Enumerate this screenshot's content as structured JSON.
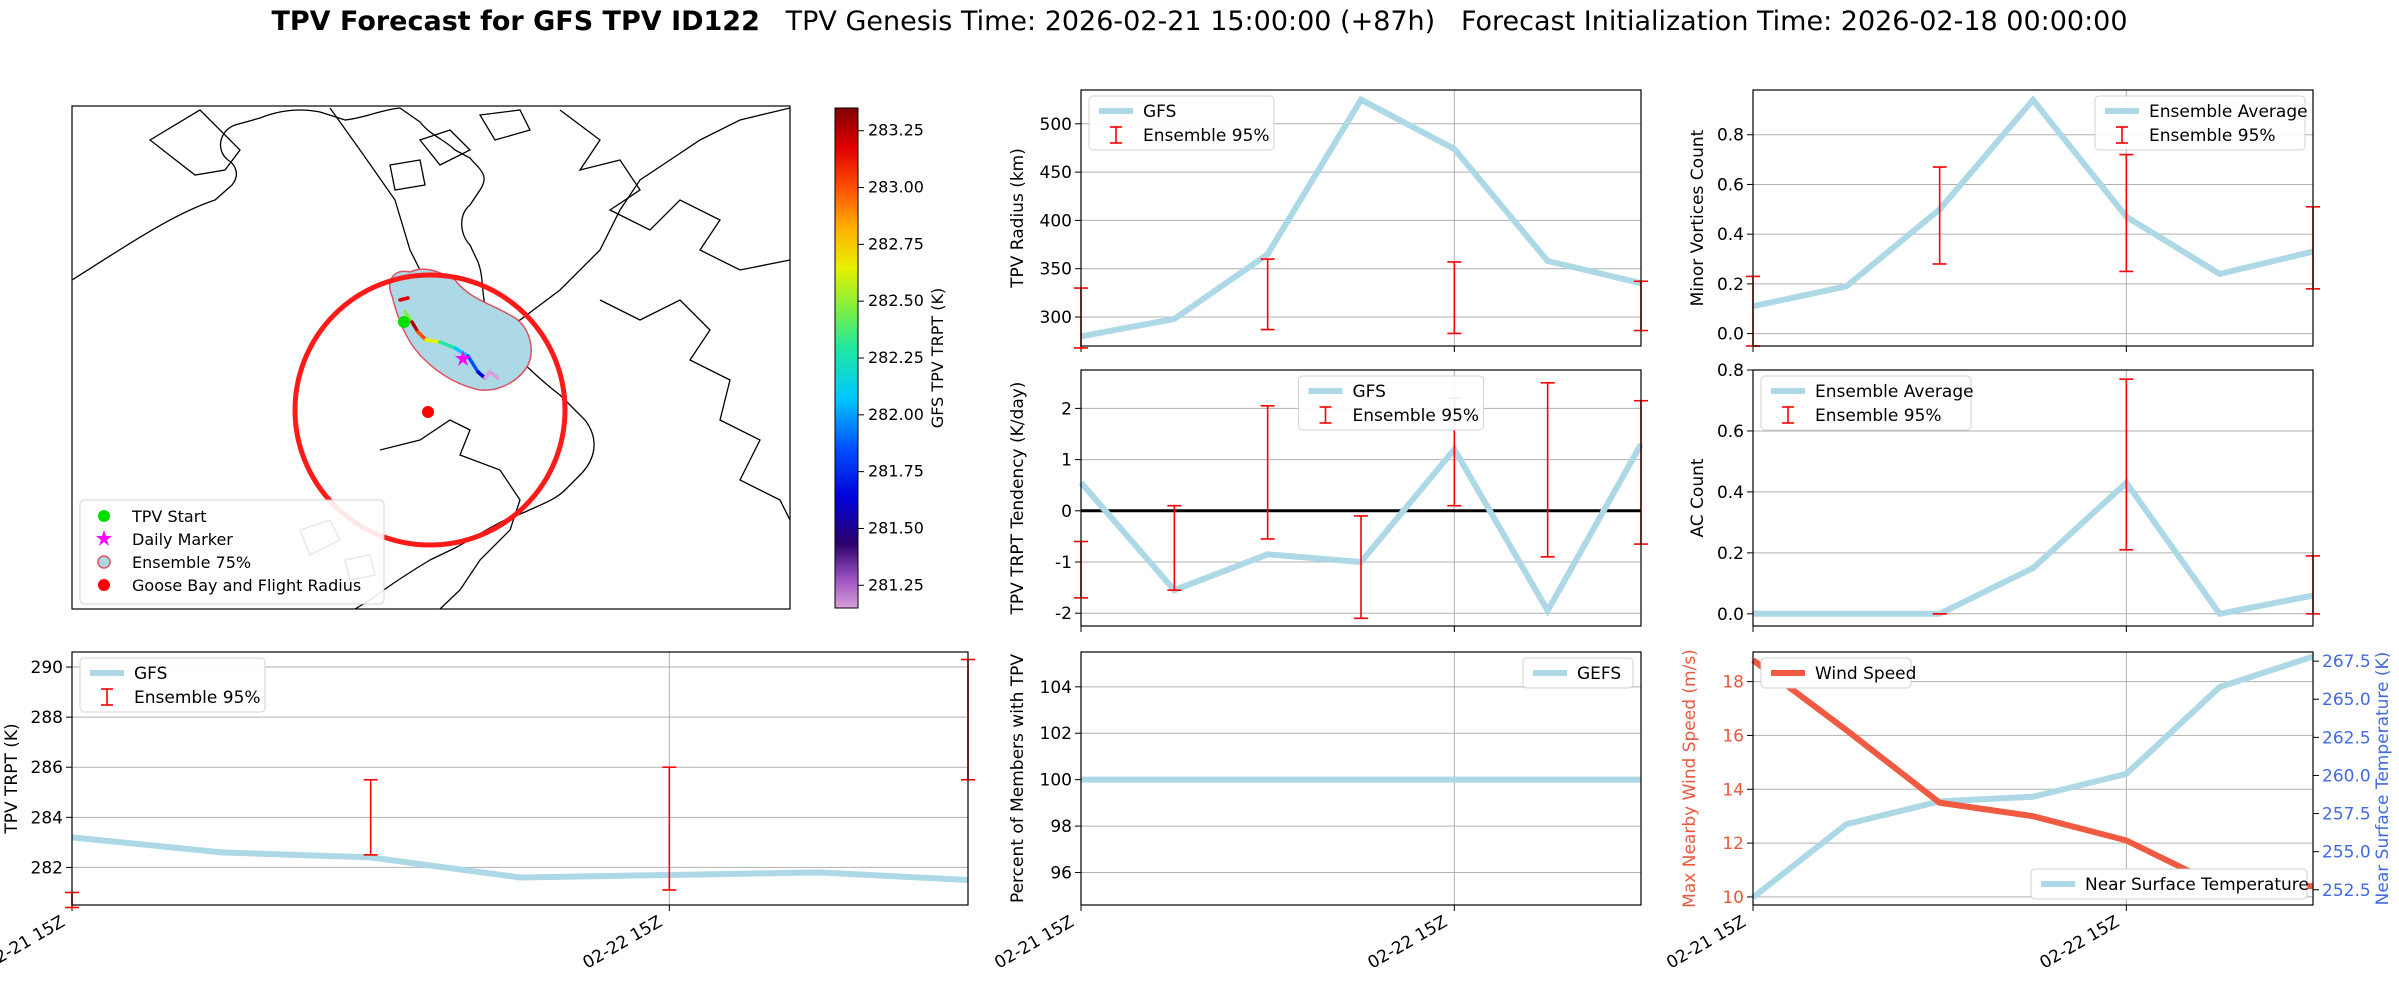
{
  "title": {
    "bold": "TPV Forecast for GFS TPV ID122",
    "genesis": "TPV Genesis Time: 2026-02-21 15:00:00 (+87h)",
    "init": "Forecast Initialization Time: 2026-02-18 00:00:00"
  },
  "colors": {
    "gfs_line": "#add8e6",
    "ensemble_err": "#ff0000",
    "wind_line": "#f05a40",
    "temp_axis": "#4169e1",
    "wind_axis": "#e8583c",
    "grid": "#b0b0b0"
  },
  "x_ticks": [
    "02-21 15Z",
    "02-22 15Z"
  ],
  "map": {
    "legend": [
      "TPV Start",
      "Daily Marker",
      "Ensemble 75%",
      "Goose Bay and Flight Radius"
    ],
    "colorbar_label": "GFS TPV TRPT (K)",
    "colorbar_ticks": [
      "283.25",
      "283.00",
      "282.75",
      "282.50",
      "282.25",
      "282.00",
      "281.75",
      "281.50",
      "281.25"
    ],
    "colorbar_range": [
      281.15,
      283.35
    ]
  },
  "chart_data": [
    {
      "id": "radius",
      "type": "line",
      "ylabel": "TPV Radius (km)",
      "legend": [
        "GFS",
        "Ensemble 95%"
      ],
      "legend_loc": "upper left",
      "ylim": [
        270,
        535
      ],
      "yticks": [
        300,
        350,
        400,
        450,
        500
      ],
      "series": [
        {
          "name": "GFS",
          "values": [
            280,
            298,
            365,
            525,
            474,
            358,
            335
          ]
        }
      ],
      "errorbars": [
        {
          "i": 0,
          "lo": 268,
          "hi": 330
        },
        {
          "i": 2,
          "lo": 287,
          "hi": 360
        },
        {
          "i": 4,
          "lo": 283,
          "hi": 357
        },
        {
          "i": 6,
          "lo": 286,
          "hi": 337
        }
      ]
    },
    {
      "id": "minor",
      "type": "line",
      "ylabel": "Minor Vortices Count",
      "legend": [
        "Ensemble Average",
        "Ensemble 95%"
      ],
      "legend_loc": "upper right",
      "ylim": [
        -0.05,
        0.98
      ],
      "yticks": [
        "0.0",
        "0.2",
        "0.4",
        "0.6",
        "0.8"
      ],
      "series": [
        {
          "name": "Ensemble Average",
          "values": [
            0.11,
            0.19,
            0.5,
            0.94,
            0.47,
            0.24,
            0.33
          ]
        }
      ],
      "errorbars": [
        {
          "i": 0,
          "lo": -0.05,
          "hi": 0.23
        },
        {
          "i": 2,
          "lo": 0.28,
          "hi": 0.67
        },
        {
          "i": 4,
          "lo": 0.25,
          "hi": 0.72
        },
        {
          "i": 6,
          "lo": 0.18,
          "hi": 0.51
        }
      ]
    },
    {
      "id": "tendency",
      "type": "line",
      "ylabel": "TPV TRPT Tendency (K/day)",
      "legend": [
        "GFS",
        "Ensemble 95%"
      ],
      "legend_loc": "upper center",
      "ylim": [
        -2.25,
        2.75
      ],
      "yticks": [
        -2,
        -1,
        0,
        1,
        2
      ],
      "series": [
        {
          "name": "GFS",
          "values": [
            0.55,
            -1.55,
            -0.85,
            -1.0,
            1.2,
            -1.95,
            1.3
          ]
        }
      ],
      "errorbars": [
        {
          "i": 0,
          "lo": -1.7,
          "hi": -0.6
        },
        {
          "i": 1,
          "lo": -1.55,
          "hi": 0.1
        },
        {
          "i": 2,
          "lo": -0.55,
          "hi": 2.05
        },
        {
          "i": 3,
          "lo": -2.1,
          "hi": -0.1
        },
        {
          "i": 4,
          "lo": 0.1,
          "hi": 2.2
        },
        {
          "i": 5,
          "lo": -0.9,
          "hi": 2.5
        },
        {
          "i": 6,
          "lo": -0.65,
          "hi": 2.15
        }
      ]
    },
    {
      "id": "ac",
      "type": "line",
      "ylabel": "AC Count",
      "legend": [
        "Ensemble Average",
        "Ensemble 95%"
      ],
      "legend_loc": "upper left",
      "ylim": [
        -0.04,
        0.8
      ],
      "yticks": [
        "0.0",
        "0.2",
        "0.4",
        "0.6",
        "0.8"
      ],
      "series": [
        {
          "name": "Ensemble Average",
          "values": [
            0.0,
            0.0,
            0.0,
            0.15,
            0.43,
            0.0,
            0.06
          ]
        }
      ],
      "errorbars": [
        {
          "i": 2,
          "lo": 0.0,
          "hi": 0.0
        },
        {
          "i": 4,
          "lo": 0.21,
          "hi": 0.77
        },
        {
          "i": 6,
          "lo": 0.0,
          "hi": 0.19
        }
      ]
    },
    {
      "id": "trpt",
      "type": "line",
      "ylabel": "TPV TRPT (K)",
      "legend": [
        "GFS",
        "Ensemble 95%"
      ],
      "legend_loc": "upper left",
      "ylim": [
        280.5,
        290.6
      ],
      "yticks": [
        282,
        284,
        286,
        288,
        290
      ],
      "series": [
        {
          "name": "GFS",
          "values": [
            283.2,
            282.6,
            282.4,
            281.6,
            281.7,
            281.8,
            281.5
          ]
        }
      ],
      "errorbars": [
        {
          "i": 0,
          "lo": 280.4,
          "hi": 281.0
        },
        {
          "i": 2,
          "lo": 282.5,
          "hi": 285.5
        },
        {
          "i": 4,
          "lo": 281.1,
          "hi": 286.0
        },
        {
          "i": 6,
          "lo": 285.5,
          "hi": 290.3
        }
      ]
    },
    {
      "id": "members",
      "type": "line",
      "ylabel": "Percent of Members with TPV",
      "legend": [
        "GEFS"
      ],
      "legend_loc": "upper right",
      "ylim": [
        94.6,
        105.5
      ],
      "yticks": [
        96,
        98,
        100,
        102,
        104
      ],
      "series": [
        {
          "name": "GEFS",
          "values": [
            100,
            100,
            100,
            100,
            100,
            100,
            100
          ]
        }
      ],
      "errorbars": []
    },
    {
      "id": "wind",
      "type": "line",
      "ylabel": "Max Nearby Wind Speed (m/s)",
      "ylabel2": "Near Surface Temperature (K)",
      "legend": [
        "Wind Speed"
      ],
      "legend2": [
        "Near Surface Temperature"
      ],
      "ylim": [
        9.7,
        19.1
      ],
      "yticks": [
        10,
        12,
        14,
        16,
        18
      ],
      "ylim2": [
        251.5,
        268.1
      ],
      "yticks2": [
        "252.5",
        "255.0",
        "257.5",
        "260.0",
        "262.5",
        "265.0",
        "267.5"
      ],
      "series": [
        {
          "name": "Wind Speed",
          "values": [
            18.8,
            16.2,
            13.5,
            13.0,
            12.1,
            10.4,
            10.4
          ]
        },
        {
          "name": "Near Surface Temperature",
          "values": [
            252.0,
            256.8,
            258.3,
            258.6,
            260.1,
            265.8,
            267.8
          ]
        }
      ]
    }
  ]
}
